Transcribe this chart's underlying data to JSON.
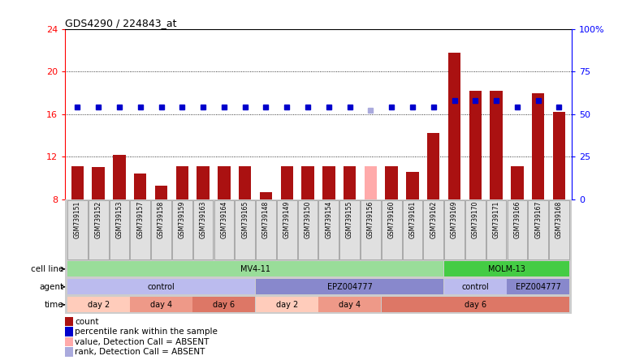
{
  "title": "GDS4290 / 224843_at",
  "samples": [
    "GSM739151",
    "GSM739152",
    "GSM739153",
    "GSM739157",
    "GSM739158",
    "GSM739159",
    "GSM739163",
    "GSM739164",
    "GSM739165",
    "GSM739148",
    "GSM739149",
    "GSM739150",
    "GSM739154",
    "GSM739155",
    "GSM739156",
    "GSM739160",
    "GSM739161",
    "GSM739162",
    "GSM739169",
    "GSM739170",
    "GSM739171",
    "GSM739166",
    "GSM739167",
    "GSM739168"
  ],
  "counts": [
    11.1,
    11.0,
    12.2,
    10.4,
    9.3,
    11.1,
    11.1,
    11.1,
    11.1,
    8.7,
    11.1,
    11.1,
    11.1,
    11.1,
    11.1,
    11.1,
    10.6,
    14.2,
    21.8,
    18.2,
    18.2,
    11.1,
    18.0,
    16.2
  ],
  "count_colors": [
    "#aa1111",
    "#aa1111",
    "#aa1111",
    "#aa1111",
    "#aa1111",
    "#aa1111",
    "#aa1111",
    "#aa1111",
    "#aa1111",
    "#aa1111",
    "#aa1111",
    "#aa1111",
    "#aa1111",
    "#aa1111",
    "#ffaaaa",
    "#aa1111",
    "#aa1111",
    "#aa1111",
    "#aa1111",
    "#aa1111",
    "#aa1111",
    "#aa1111",
    "#aa1111",
    "#aa1111"
  ],
  "ranks": [
    16.7,
    16.7,
    16.7,
    16.7,
    16.7,
    16.7,
    16.7,
    16.7,
    16.7,
    16.7,
    16.7,
    16.7,
    16.7,
    16.7,
    16.4,
    16.7,
    16.7,
    16.7,
    17.3,
    17.3,
    17.3,
    16.7,
    17.3,
    16.7
  ],
  "rank_colors": [
    "#0000cc",
    "#0000cc",
    "#0000cc",
    "#0000cc",
    "#0000cc",
    "#0000cc",
    "#0000cc",
    "#0000cc",
    "#0000cc",
    "#0000cc",
    "#0000cc",
    "#0000cc",
    "#0000cc",
    "#0000cc",
    "#aaaadd",
    "#0000cc",
    "#0000cc",
    "#0000cc",
    "#0000cc",
    "#0000cc",
    "#0000cc",
    "#0000cc",
    "#0000cc",
    "#0000cc"
  ],
  "ylim_left": [
    8,
    24
  ],
  "yticks_left": [
    8,
    12,
    16,
    20,
    24
  ],
  "ylim_right": [
    0,
    100
  ],
  "yticks_right": [
    0,
    25,
    50,
    75,
    100
  ],
  "ytick_labels_right": [
    "0",
    "25",
    "50",
    "75",
    "100%"
  ],
  "cell_line_groups": [
    {
      "label": "MV4-11",
      "start": 0,
      "end": 18,
      "color": "#99dd99"
    },
    {
      "label": "MOLM-13",
      "start": 18,
      "end": 24,
      "color": "#44cc44"
    }
  ],
  "agent_groups": [
    {
      "label": "control",
      "start": 0,
      "end": 9,
      "color": "#bbbbee"
    },
    {
      "label": "EPZ004777",
      "start": 9,
      "end": 18,
      "color": "#8888cc"
    },
    {
      "label": "control",
      "start": 18,
      "end": 21,
      "color": "#bbbbee"
    },
    {
      "label": "EPZ004777",
      "start": 21,
      "end": 24,
      "color": "#8888cc"
    }
  ],
  "time_groups": [
    {
      "label": "day 2",
      "start": 0,
      "end": 3,
      "color": "#ffccbb"
    },
    {
      "label": "day 4",
      "start": 3,
      "end": 6,
      "color": "#ee9988"
    },
    {
      "label": "day 6",
      "start": 6,
      "end": 9,
      "color": "#dd7766"
    },
    {
      "label": "day 2",
      "start": 9,
      "end": 12,
      "color": "#ffccbb"
    },
    {
      "label": "day 4",
      "start": 12,
      "end": 15,
      "color": "#ee9988"
    },
    {
      "label": "day 6",
      "start": 15,
      "end": 24,
      "color": "#dd7766"
    }
  ],
  "legend_items": [
    {
      "label": "count",
      "color": "#aa1111"
    },
    {
      "label": "percentile rank within the sample",
      "color": "#0000cc"
    },
    {
      "label": "value, Detection Call = ABSENT",
      "color": "#ffaaaa"
    },
    {
      "label": "rank, Detection Call = ABSENT",
      "color": "#aaaadd"
    }
  ],
  "bg_color": "#ffffff"
}
